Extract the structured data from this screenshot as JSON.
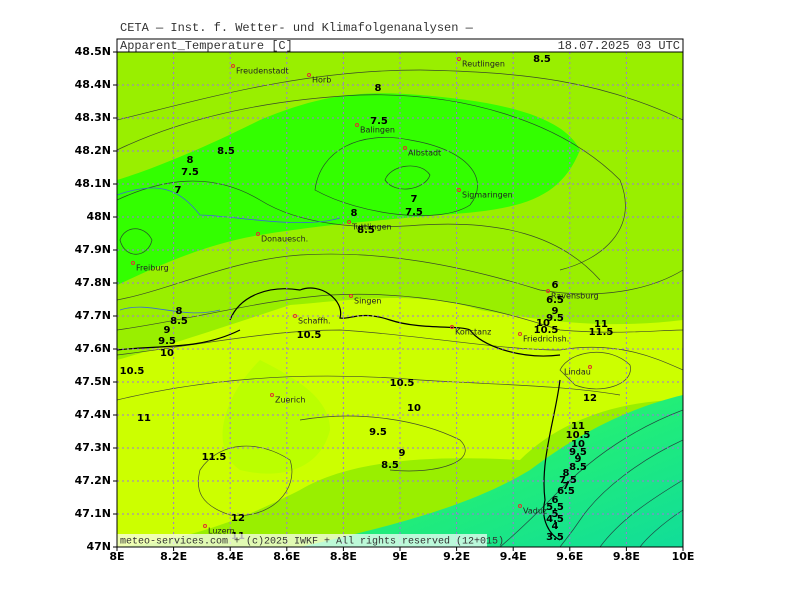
{
  "header": {
    "title": "CETA — Inst. f. Wetter- und Klimafolgenanalysen —"
  },
  "map": {
    "variable": "Apparent_Temperature [C]",
    "date": "18.07.2025 03 UTC",
    "footer": "meteo-services.com + (c)2025 IWKF + All rights reserved (12+015)",
    "lat_ticks": [
      "47N",
      "47.1N",
      "47.2N",
      "47.3N",
      "47.4N",
      "47.5N",
      "47.6N",
      "47.7N",
      "47.8N",
      "47.9N",
      "48N",
      "48.1N",
      "48.2N",
      "48.3N",
      "48.4N",
      "48.5N"
    ],
    "lon_ticks": [
      "8E",
      "8.2E",
      "8.4E",
      "8.6E",
      "8.8E",
      "9E",
      "9.2E",
      "9.4E",
      "9.6E",
      "9.8E",
      "10E"
    ],
    "cities": [
      "Freudenstadt",
      "Horb",
      "Reutlingen",
      "Balingen",
      "Albstadt",
      "Sigmaringen",
      "Tuttlingen",
      "Donauesch.",
      "Freiburg",
      "Singen",
      "Schaffh.",
      "Konstanz",
      "Friedrichsh.",
      "Ravensburg",
      "Lindau",
      "Zuerich",
      "Luzern",
      "Vaduz"
    ],
    "contour_labels": [
      "8.5",
      "8",
      "7.5",
      "8.5",
      "8",
      "7.5",
      "7",
      "7",
      "7.5",
      "8",
      "8.5",
      "6",
      "6.5",
      "8",
      "8.5",
      "9",
      "9.5",
      "10",
      "10.5",
      "9",
      "9.5",
      "10",
      "10.5",
      "11",
      "11.5",
      "10.5",
      "10.5",
      "10",
      "11",
      "12",
      "11",
      "10.5",
      "10",
      "9.5",
      "9",
      "8.5",
      "9.5",
      "9",
      "8.5",
      "11.5",
      "8",
      "7.5",
      "7",
      "6.5",
      "6",
      "5.5",
      "5",
      "4.5",
      "4",
      "3.5",
      "12",
      "11"
    ]
  }
}
